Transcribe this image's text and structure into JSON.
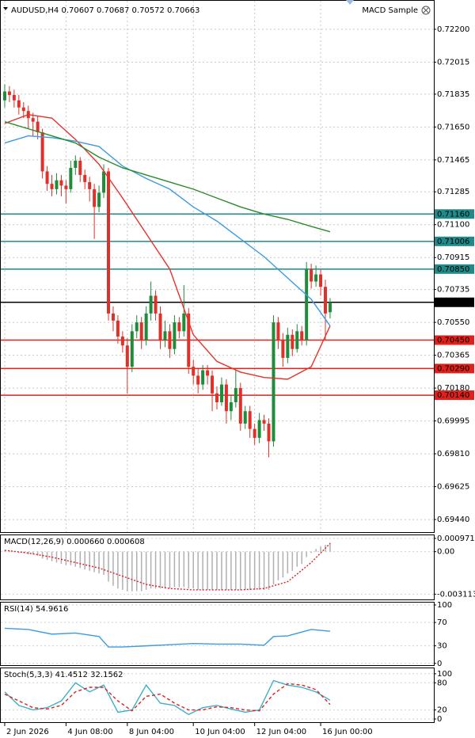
{
  "chart_data": {
    "type": "candlestick",
    "title": "AUDUSD,H4  0.70607 0.70687 0.70572 0.70663",
    "expert": "MACD Sample",
    "up_color": "#1e8c3a",
    "down_color": "#e0302a",
    "xlim": [
      -1,
      91
    ],
    "xticks": [
      {
        "value": 0,
        "label": "2 Jun 2026"
      },
      {
        "value": 13,
        "label": "4 Jun 08:00"
      },
      {
        "value": 26,
        "label": "8 Jun 04:00"
      },
      {
        "value": 40,
        "label": "10 Jun 04:00"
      },
      {
        "value": 53,
        "label": "12 Jun 04:00"
      },
      {
        "value": 67,
        "label": "16 Jun 00:00"
      }
    ],
    "ylim": [
      0.69369,
      0.72365
    ],
    "yticks": [
      {
        "value": 0.722,
        "label": "0.72200"
      },
      {
        "value": 0.72015,
        "label": "0.72015"
      },
      {
        "value": 0.71835,
        "label": "0.71835"
      },
      {
        "value": 0.7165,
        "label": "0.71650"
      },
      {
        "value": 0.71465,
        "label": "0.71465"
      },
      {
        "value": 0.71285,
        "label": "0.71285"
      },
      {
        "value": 0.711,
        "label": "0.71100"
      },
      {
        "value": 0.70915,
        "label": "0.70915"
      },
      {
        "value": 0.70735,
        "label": "0.70735"
      },
      {
        "value": 0.7055,
        "label": "0.70550"
      },
      {
        "value": 0.70365,
        "label": "0.70365"
      },
      {
        "value": 0.7018,
        "label": "0.70180"
      },
      {
        "value": 0.69995,
        "label": "0.69995"
      },
      {
        "value": 0.6981,
        "label": "0.69810"
      },
      {
        "value": 0.69625,
        "label": "0.69625"
      },
      {
        "value": 0.6944,
        "label": "0.69440"
      }
    ],
    "grid": true,
    "ohlc": [
      [
        0.718,
        0.7189,
        0.7176,
        0.7185
      ],
      [
        0.7185,
        0.7188,
        0.7179,
        0.7183
      ],
      [
        0.7183,
        0.7186,
        0.7176,
        0.718
      ],
      [
        0.718,
        0.7183,
        0.7172,
        0.7176
      ],
      [
        0.7176,
        0.7179,
        0.717,
        0.7174
      ],
      [
        0.7174,
        0.7177,
        0.7164,
        0.717
      ],
      [
        0.717,
        0.7173,
        0.716,
        0.7168
      ],
      [
        0.7168,
        0.7171,
        0.7158,
        0.7162
      ],
      [
        0.7162,
        0.7164,
        0.7136,
        0.714
      ],
      [
        0.714,
        0.7143,
        0.7129,
        0.7133
      ],
      [
        0.7133,
        0.7138,
        0.7126,
        0.713
      ],
      [
        0.713,
        0.7139,
        0.7127,
        0.7135
      ],
      [
        0.7135,
        0.7138,
        0.7126,
        0.7132
      ],
      [
        0.7132,
        0.7135,
        0.7122,
        0.713
      ],
      [
        0.713,
        0.7146,
        0.7128,
        0.7142
      ],
      [
        0.7142,
        0.7149,
        0.7138,
        0.7146
      ],
      [
        0.7146,
        0.7148,
        0.7134,
        0.7138
      ],
      [
        0.7138,
        0.7141,
        0.713,
        0.7134
      ],
      [
        0.7134,
        0.7137,
        0.7123,
        0.713
      ],
      [
        0.713,
        0.7133,
        0.7102,
        0.712
      ],
      [
        0.712,
        0.7132,
        0.7117,
        0.7128
      ],
      [
        0.7128,
        0.7144,
        0.7125,
        0.714
      ],
      [
        0.714,
        0.7142,
        0.7056,
        0.706
      ],
      [
        0.706,
        0.7064,
        0.705,
        0.7056
      ],
      [
        0.7056,
        0.7059,
        0.7043,
        0.7047
      ],
      [
        0.7047,
        0.705,
        0.7038,
        0.7042
      ],
      [
        0.7042,
        0.7046,
        0.7015,
        0.703
      ],
      [
        0.703,
        0.7054,
        0.7027,
        0.705
      ],
      [
        0.705,
        0.7059,
        0.7046,
        0.7055
      ],
      [
        0.7055,
        0.7058,
        0.704,
        0.7045
      ],
      [
        0.7045,
        0.7064,
        0.7042,
        0.706
      ],
      [
        0.706,
        0.7078,
        0.7056,
        0.707
      ],
      [
        0.707,
        0.7073,
        0.7056,
        0.706
      ],
      [
        0.706,
        0.7064,
        0.704,
        0.7045
      ],
      [
        0.7045,
        0.7056,
        0.7041,
        0.705
      ],
      [
        0.705,
        0.7054,
        0.7035,
        0.704
      ],
      [
        0.704,
        0.7059,
        0.7037,
        0.7055
      ],
      [
        0.7055,
        0.7058,
        0.7046,
        0.705
      ],
      [
        0.705,
        0.7076,
        0.7047,
        0.706
      ],
      [
        0.706,
        0.7063,
        0.7026,
        0.703
      ],
      [
        0.703,
        0.7034,
        0.702,
        0.7025
      ],
      [
        0.7025,
        0.7029,
        0.7015,
        0.702
      ],
      [
        0.702,
        0.7031,
        0.7017,
        0.7028
      ],
      [
        0.7028,
        0.7031,
        0.702,
        0.7025
      ],
      [
        0.7025,
        0.7028,
        0.7005,
        0.7015
      ],
      [
        0.7015,
        0.7019,
        0.7006,
        0.701
      ],
      [
        0.701,
        0.7024,
        0.7008,
        0.702
      ],
      [
        0.702,
        0.7023,
        0.6998,
        0.7005
      ],
      [
        0.7005,
        0.7014,
        0.7,
        0.701
      ],
      [
        0.701,
        0.7028,
        0.7007,
        0.7018
      ],
      [
        0.7018,
        0.7021,
        0.6994,
        0.6998
      ],
      [
        0.6998,
        0.7008,
        0.6995,
        0.7005
      ],
      [
        0.7005,
        0.7008,
        0.699,
        0.6995
      ],
      [
        0.6995,
        0.6998,
        0.6986,
        0.699
      ],
      [
        0.699,
        0.7004,
        0.6987,
        0.7
      ],
      [
        0.7,
        0.7003,
        0.6994,
        0.6998
      ],
      [
        0.6998,
        0.7001,
        0.6979,
        0.6988
      ],
      [
        0.6988,
        0.7059,
        0.6985,
        0.7055
      ],
      [
        0.7055,
        0.7058,
        0.704,
        0.7045
      ],
      [
        0.7045,
        0.7049,
        0.703,
        0.7035
      ],
      [
        0.7035,
        0.7052,
        0.7032,
        0.7048
      ],
      [
        0.7048,
        0.7051,
        0.7036,
        0.704
      ],
      [
        0.704,
        0.7054,
        0.7038,
        0.705
      ],
      [
        0.705,
        0.7053,
        0.7042,
        0.7045
      ],
      [
        0.7045,
        0.7089,
        0.7042,
        0.7085
      ],
      [
        0.7085,
        0.7088,
        0.7074,
        0.7078
      ],
      [
        0.7078,
        0.7087,
        0.7075,
        0.7082
      ],
      [
        0.7082,
        0.7085,
        0.707,
        0.7075
      ],
      [
        0.7075,
        0.7079,
        0.7045,
        0.706
      ],
      [
        0.70607,
        0.70687,
        0.70572,
        0.70663
      ]
    ],
    "overlays": [
      {
        "color": "#e8302a",
        "x": [
          0,
          5,
          10,
          15,
          20,
          25,
          30,
          35,
          40,
          45,
          50,
          55,
          60,
          65,
          69
        ],
        "values": [
          0.7167,
          0.7172,
          0.717,
          0.7158,
          0.7144,
          0.7125,
          0.7105,
          0.7085,
          0.7048,
          0.7033,
          0.7027,
          0.7024,
          0.7023,
          0.703,
          0.7053
        ]
      },
      {
        "color": "#3b9be0",
        "x": [
          0,
          5,
          10,
          15,
          20,
          25,
          30,
          35,
          40,
          45,
          50,
          55,
          60,
          65,
          69
        ],
        "values": [
          0.7156,
          0.716,
          0.7159,
          0.7157,
          0.7154,
          0.7143,
          0.7136,
          0.713,
          0.712,
          0.7112,
          0.7102,
          0.7092,
          0.708,
          0.7068,
          0.7053
        ]
      },
      {
        "color": "#2a8a2a",
        "x": [
          0,
          5,
          10,
          15,
          20,
          25,
          30,
          35,
          40,
          45,
          50,
          55,
          60,
          65,
          69
        ],
        "values": [
          0.7168,
          0.7164,
          0.716,
          0.7156,
          0.7148,
          0.7142,
          0.7138,
          0.7134,
          0.713,
          0.7125,
          0.712,
          0.7116,
          0.7113,
          0.7109,
          0.7106
        ]
      }
    ],
    "levels": [
      {
        "value": 0.7116,
        "label": "0.71160",
        "color": "#1f8a8a"
      },
      {
        "value": 0.71006,
        "label": "0.71006",
        "color": "#1f8a8a"
      },
      {
        "value": 0.7085,
        "label": "0.70850",
        "color": "#1f8a8a"
      },
      {
        "value": 0.7045,
        "label": "0.70450",
        "color": "#e0201a"
      },
      {
        "value": 0.7029,
        "label": "0.70290",
        "color": "#e0201a"
      },
      {
        "value": 0.7014,
        "label": "0.70140",
        "color": "#e0201a"
      }
    ],
    "current": {
      "value": 0.70663,
      "label": "0.70663",
      "color": "#000000"
    },
    "indicators": [
      {
        "title": "MACD(12,26,9) 0.000660 0.000608",
        "ylim": [
          -0.0035,
          0.0012
        ],
        "yticks": [
          {
            "value": 0.000971,
            "label": "0.000971"
          },
          {
            "value": 0,
            "label": "0.00"
          },
          {
            "value": -0.003113,
            "label": "-0.003113"
          }
        ],
        "series": [
          {
            "style": "histogram",
            "color": "#b0b0b0",
            "values": [
              0.0001,
              0.0001,
              0,
              -0.0001,
              -0.0001,
              -0.0002,
              -0.0002,
              -0.0003,
              -0.0005,
              -0.0006,
              -0.0007,
              -0.0008,
              -0.0009,
              -0.001,
              -0.001,
              -0.0011,
              -0.0012,
              -0.0013,
              -0.0014,
              -0.0015,
              -0.0016,
              -0.0017,
              -0.0022,
              -0.0025,
              -0.0027,
              -0.0028,
              -0.0029,
              -0.0029,
              -0.0029,
              -0.0029,
              -0.0028,
              -0.0027,
              -0.0027,
              -0.0027,
              -0.0027,
              -0.0027,
              -0.0026,
              -0.0026,
              -0.0026,
              -0.0027,
              -0.0027,
              -0.0028,
              -0.0028,
              -0.0028,
              -0.0028,
              -0.0028,
              -0.0028,
              -0.0028,
              -0.0028,
              -0.0028,
              -0.0028,
              -0.0028,
              -0.0028,
              -0.0028,
              -0.0028,
              -0.0028,
              -0.0028,
              -0.0024,
              -0.0021,
              -0.0019,
              -0.0016,
              -0.0014,
              -0.0011,
              -0.0009,
              -0.0004,
              -0.0001,
              0.0002,
              0.0004,
              0.0005,
              0.00066
            ]
          },
          {
            "style": "dotted",
            "color": "#e0201a",
            "x": [
              0,
              5,
              10,
              15,
              20,
              25,
              30,
              35,
              40,
              45,
              50,
              55,
              60,
              65,
              69
            ],
            "values": [
              0.0001,
              -0.0001,
              -0.0004,
              -0.0008,
              -0.0012,
              -0.0018,
              -0.0024,
              -0.0027,
              -0.0028,
              -0.0028,
              -0.0028,
              -0.0027,
              -0.0022,
              -0.0008,
              0.000608
            ]
          }
        ]
      },
      {
        "title": "RSI(14) 54.9616",
        "ylim": [
          -3,
          104
        ],
        "yticks": [
          100,
          70,
          30,
          0
        ],
        "series": [
          {
            "style": "solid",
            "color": "#3b9be0",
            "x": [
              0,
              5,
              10,
              15,
              20,
              22,
              25,
              30,
              35,
              40,
              45,
              50,
              55,
              57,
              60,
              65,
              69
            ],
            "values": [
              60,
              58,
              50,
              52,
              46,
              28,
              28,
              30,
              32,
              34,
              33,
              33,
              31,
              46,
              47,
              58,
              54.9616
            ]
          }
        ]
      },
      {
        "title": "Stoch(5,3,3) 41.4512 32.1562",
        "ylim": [
          -7,
          112
        ],
        "yticks": [
          100,
          80,
          20,
          0
        ],
        "series": [
          {
            "style": "solid",
            "color": "#3bb0c8",
            "x": [
              0,
              3,
              6,
              9,
              12,
              15,
              18,
              21,
              24,
              27,
              30,
              33,
              36,
              39,
              42,
              45,
              48,
              51,
              54,
              57,
              60,
              63,
              66,
              69
            ],
            "values": [
              60,
              30,
              20,
              25,
              40,
              80,
              60,
              75,
              15,
              20,
              75,
              35,
              30,
              10,
              25,
              30,
              22,
              15,
              20,
              85,
              75,
              70,
              60,
              41.4512
            ]
          },
          {
            "style": "dashed",
            "color": "#e0201a",
            "x": [
              0,
              3,
              6,
              9,
              12,
              15,
              18,
              21,
              24,
              27,
              30,
              33,
              36,
              39,
              42,
              45,
              48,
              51,
              54,
              57,
              60,
              63,
              66,
              69
            ],
            "values": [
              55,
              40,
              25,
              22,
              30,
              60,
              70,
              70,
              40,
              18,
              50,
              55,
              35,
              20,
              20,
              27,
              25,
              20,
              18,
              55,
              78,
              75,
              65,
              32.1562
            ]
          }
        ]
      }
    ]
  }
}
